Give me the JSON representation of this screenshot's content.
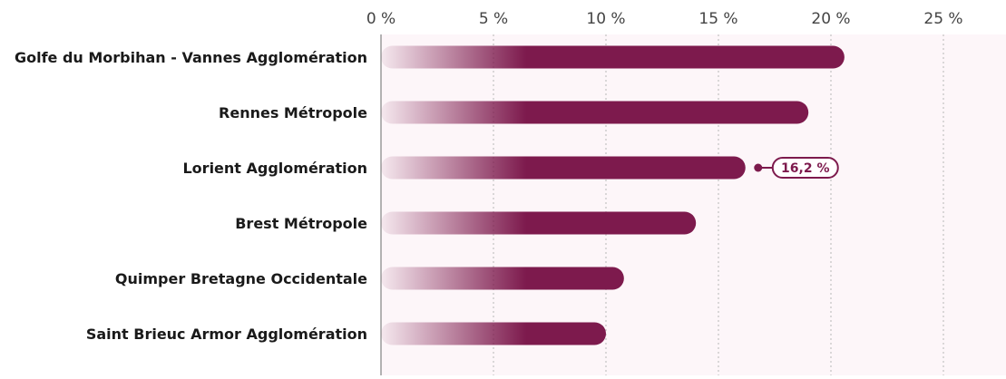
{
  "chart_data": {
    "type": "bar",
    "orientation": "horizontal",
    "categories": [
      "Golfe du Morbihan - Vannes Agglomération",
      "Rennes Métropole",
      "Lorient Agglomération",
      "Brest Métropole",
      "Quimper Bretagne Occidentale",
      "Saint Brieuc Armor Agglomération"
    ],
    "values": [
      20.6,
      19.0,
      16.2,
      14.0,
      10.8,
      10.0
    ],
    "x_ticks": [
      0,
      5,
      10,
      15,
      20,
      25
    ],
    "x_tick_labels": [
      "0 %",
      "5 %",
      "10 %",
      "15 %",
      "20 %",
      "25 %"
    ],
    "xlim": [
      0,
      27.5
    ],
    "grid": true,
    "bar_color": "#7d1a4d",
    "plot_background": "#fdf6f9",
    "highlight": {
      "category": "Lorient Agglomération",
      "label": "16,2 %"
    }
  }
}
